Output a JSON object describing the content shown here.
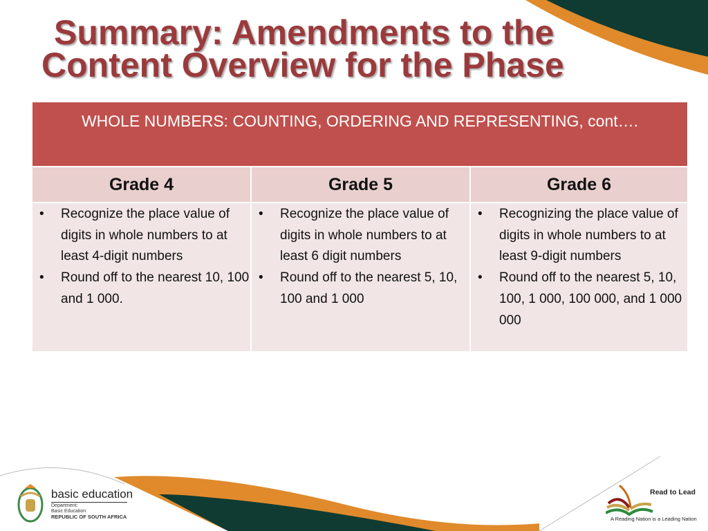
{
  "title": {
    "line1": "Summary: Amendments to the",
    "line2": "Content Overview for the Phase"
  },
  "table": {
    "header": "WHOLE NUMBERS: COUNTING, ORDERING AND REPRESENTING, cont….",
    "columns": [
      {
        "grade": "Grade 4",
        "bullets": [
          "Recognize the place value of digits in whole numbers to at least 4-digit numbers",
          "Round off to the nearest 10, 100 and 1 000."
        ]
      },
      {
        "grade": "Grade 5",
        "bullets": [
          " Recognize the place value of digits in whole numbers to at least 6 digit numbers",
          "Round off to the nearest 5, 10, 100 and 1 000"
        ]
      },
      {
        "grade": "Grade 6",
        "bullets": [
          "Recognizing the place value of digits in whole numbers to at least 9-digit numbers",
          "Round off to the nearest 5, 10, 100, 1 000, 100 000, and 1 000 000"
        ]
      }
    ]
  },
  "footer": {
    "dept_name": "basic education",
    "dept_line1": "Department:",
    "dept_line2": "Basic Education",
    "dept_line3": "REPUBLIC OF SOUTH AFRICA",
    "campaign": "Read to Lead",
    "tagline": "A Reading Nation is a Leading Nation"
  },
  "colors": {
    "title": "#9b3a3c",
    "header": "#c0504d",
    "grade_row": "#e9cfce",
    "body_row": "#f2e5e5",
    "green": "#0f3b33",
    "orange": "#e08a2c"
  }
}
